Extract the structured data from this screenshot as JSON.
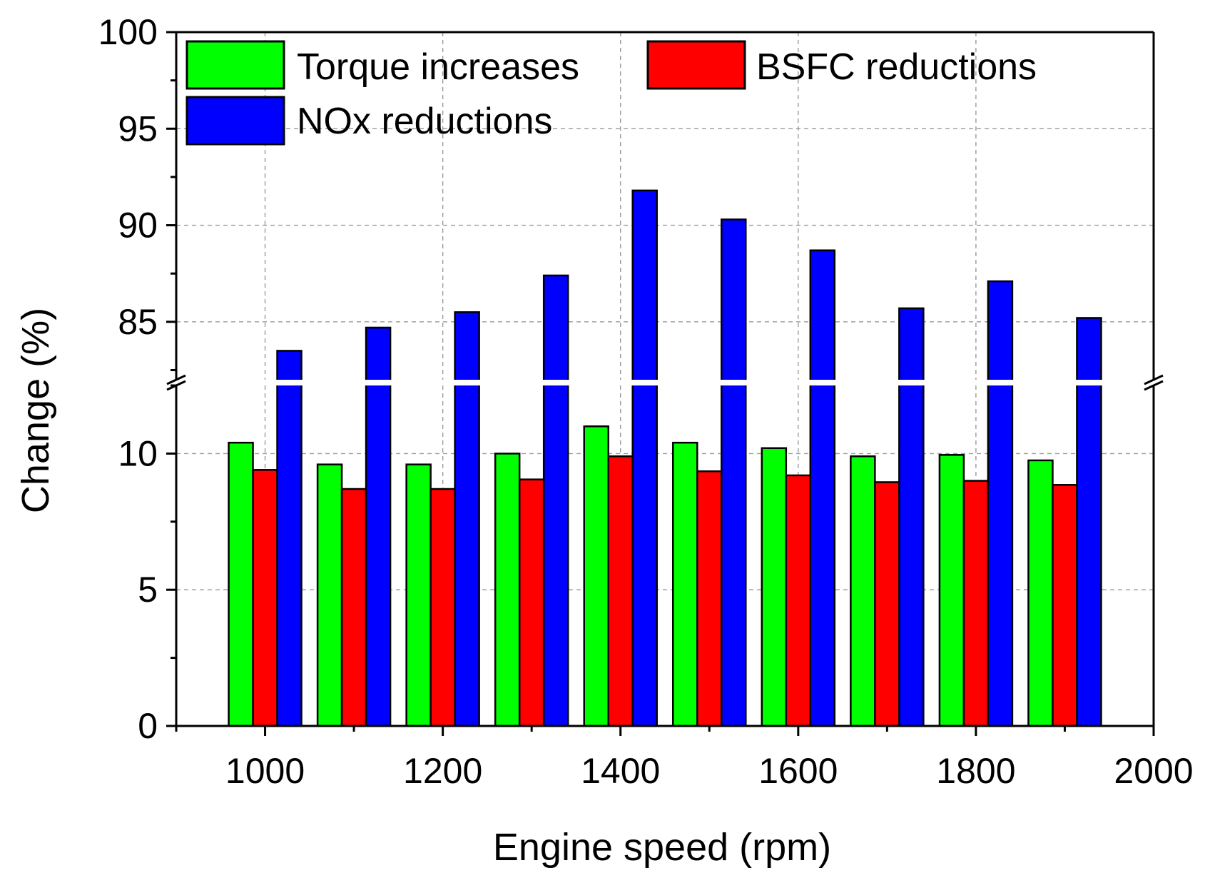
{
  "chart_data": {
    "type": "bar",
    "xlabel": "Engine speed (rpm)",
    "ylabel": "Change (%)",
    "xlim": [
      900,
      2000
    ],
    "x_ticks": [
      "1000",
      "1200",
      "1400",
      "1600",
      "1800",
      "2000"
    ],
    "y_axis_break": {
      "lower_range": [
        0,
        12.5
      ],
      "upper_range": [
        82,
        100
      ]
    },
    "y_ticks_lower": [
      "0",
      "5",
      "10"
    ],
    "y_ticks_upper": [
      "85",
      "90",
      "95",
      "100"
    ],
    "grid": true,
    "legend_position": "top",
    "categories": [
      1000,
      1100,
      1200,
      1300,
      1400,
      1500,
      1600,
      1700,
      1800,
      1900
    ],
    "series": [
      {
        "name": "Torque increases",
        "color": "#00ff00",
        "values": [
          10.4,
          9.6,
          9.6,
          10.0,
          11.0,
          10.4,
          10.2,
          9.9,
          9.95,
          9.75
        ]
      },
      {
        "name": "BSFC reductions",
        "color": "#ff0000",
        "values": [
          9.4,
          8.7,
          8.7,
          9.05,
          9.9,
          9.35,
          9.2,
          8.95,
          9.0,
          8.85
        ]
      },
      {
        "name": "NOx reductions",
        "color": "#0000ff",
        "values": [
          83.5,
          84.7,
          85.5,
          87.4,
          91.8,
          90.3,
          88.7,
          85.7,
          87.1,
          85.2
        ]
      }
    ]
  }
}
